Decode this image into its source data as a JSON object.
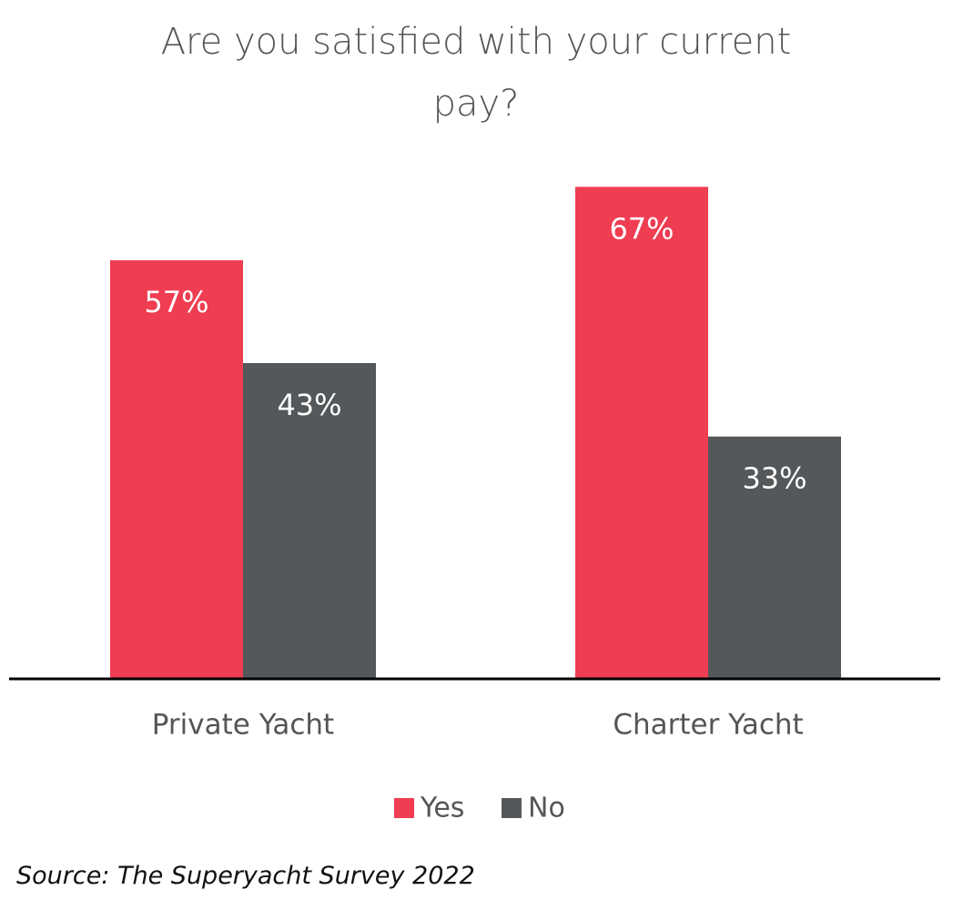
{
  "chart_data": {
    "type": "bar",
    "title": "Are you satisfied with your current pay?",
    "categories": [
      "Private Yacht",
      "Charter Yacht"
    ],
    "series": [
      {
        "name": "Yes",
        "color": "#ef3d52",
        "values": [
          57,
          67
        ],
        "value_labels": [
          "57%",
          "67%"
        ]
      },
      {
        "name": "No",
        "color": "#55585a",
        "values": [
          43,
          33
        ],
        "value_labels": [
          "43%",
          "33%"
        ]
      }
    ],
    "source": "Source: The Superyacht Survey 2022"
  }
}
